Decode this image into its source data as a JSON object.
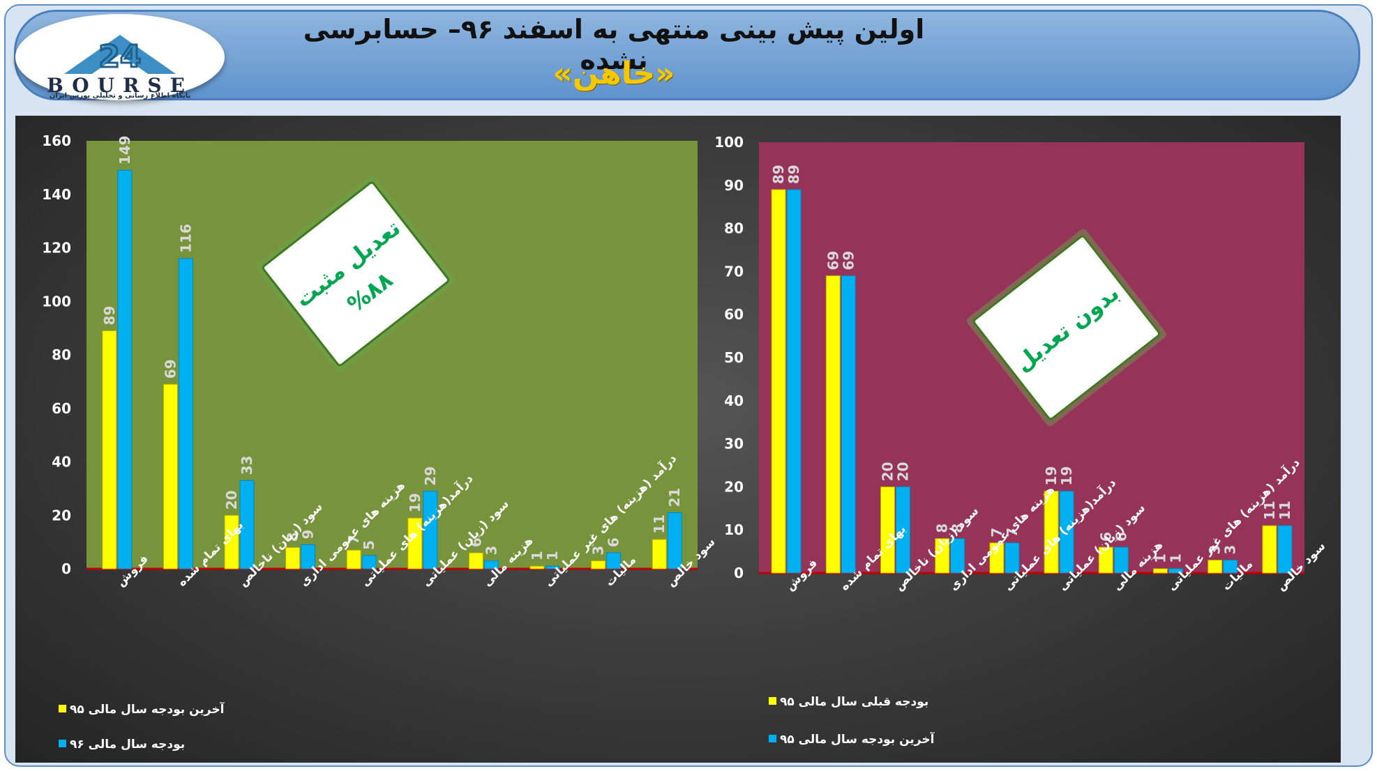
{
  "header": {
    "title": "اولین پیش بینی منتهی به اسفند ۹۶– حسابرسی نشده",
    "subtitle": "«خاهن»",
    "logo_word": "BOURSE",
    "logo_number": "24",
    "logo_caption": "پایگاه اطلاع رسانی و تحلیلی بورس ایران"
  },
  "colors": {
    "banner": "#6a9bd1",
    "left_plot_bg": "#77933c",
    "right_plot_bg": "#953458",
    "yellow_bar": "#ffff00",
    "cyan_bar": "#00b0f0",
    "badge_text": "#00a651",
    "axis_labels": "#ffffff"
  },
  "chart_data": [
    {
      "type": "bar",
      "categories": [
        "فروش",
        "بهای تمام شده",
        "سود (زیان) ناخالص",
        "هزینه های عمومی اداری",
        "درآمد(هزینه) های عملیاتی",
        "سود (زیان) عملیاتی",
        "هزینه مالی",
        "درآمد (هزینه) های غیر عملیاتی",
        "مالیات",
        "سود خالص"
      ],
      "series": [
        {
          "name": "آخرین بودجه سال مالی ۹۵",
          "color": "#ffff00",
          "values": [
            89,
            69,
            20,
            8,
            7,
            19,
            6,
            1,
            3,
            11
          ]
        },
        {
          "name": "بودجه سال مالی ۹۶",
          "color": "#00b0f0",
          "values": [
            149,
            116,
            33,
            9,
            5,
            29,
            3,
            1,
            6,
            21
          ]
        }
      ],
      "ylim": [
        0,
        160
      ],
      "yticks": [
        0,
        20,
        40,
        60,
        80,
        100,
        120,
        140,
        160
      ],
      "grid": false,
      "legend": "bottom-left",
      "badge": {
        "line1": "تعدیل مثبت",
        "line2": "%۸۸"
      }
    },
    {
      "type": "bar",
      "categories": [
        "فروش",
        "بهای تمام شده",
        "سود (زیان) ناخالص",
        "هزینه های عمومی اداری",
        "درآمد(هزینه) های عملیاتی",
        "سود (زیان) عملیاتی",
        "هزینه مالی",
        "درآمد (هزینه) های غیر عملیاتی",
        "مالیات",
        "سود خالص"
      ],
      "series": [
        {
          "name": "بودجه قبلی سال مالی ۹۵",
          "color": "#ffff00",
          "values": [
            89,
            69,
            20,
            8,
            7,
            19,
            6,
            1,
            3,
            11
          ]
        },
        {
          "name": "آخرین بودجه سال مالی ۹۵",
          "color": "#00b0f0",
          "values": [
            89,
            69,
            20,
            8,
            7,
            19,
            6,
            1,
            3,
            11
          ]
        }
      ],
      "ylim": [
        0,
        100
      ],
      "yticks": [
        0,
        10,
        20,
        30,
        40,
        50,
        60,
        70,
        80,
        90,
        100
      ],
      "grid": false,
      "legend": "bottom-left",
      "badge": {
        "line1": "بدون تعدیل",
        "line2": ""
      }
    }
  ]
}
